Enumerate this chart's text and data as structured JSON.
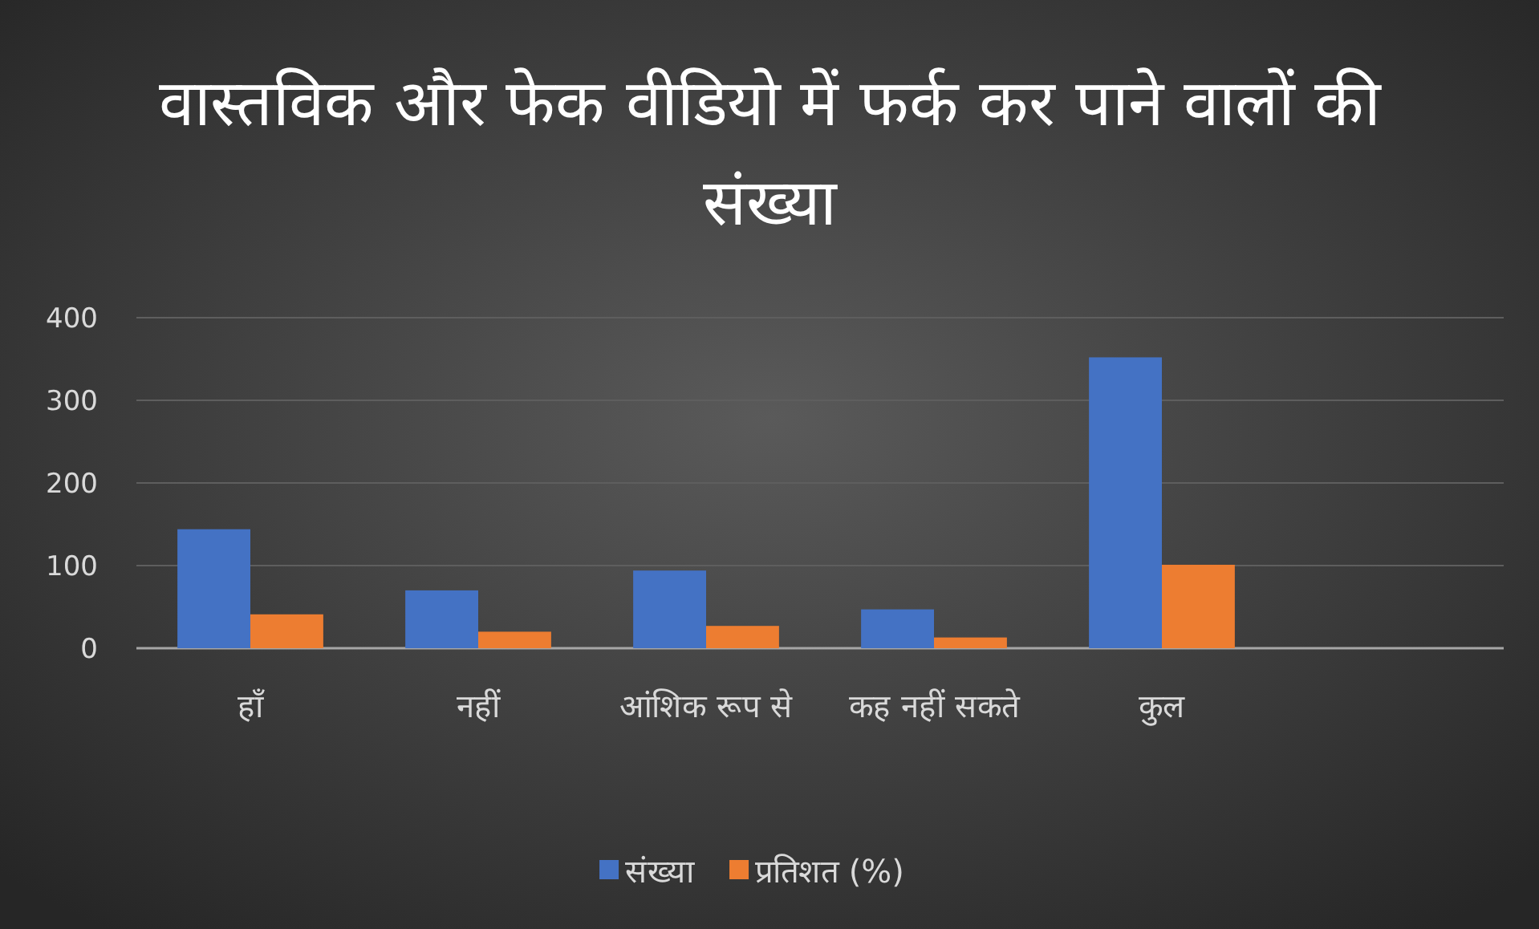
{
  "chart_data": {
    "type": "bar",
    "title": "वास्तविक और फेक वीडियो में फर्क कर पाने वालों की संख्या",
    "categories": [
      "हाँ",
      "नहीं",
      "आंशिक रूप से",
      "कह नहीं सकते",
      "कुल",
      null
    ],
    "series": [
      {
        "name": "संख्या",
        "color": "#4472c4",
        "values": [
          144,
          70,
          94,
          47,
          352,
          null
        ]
      },
      {
        "name": "प्रतिशत (%)",
        "color": "#ed7d31",
        "values": [
          41,
          20,
          27,
          13,
          101,
          null
        ]
      }
    ],
    "ylim": [
      0,
      400
    ],
    "yticks": [
      0,
      100,
      200,
      300,
      400
    ],
    "grid": "y",
    "legend": "bottom"
  }
}
